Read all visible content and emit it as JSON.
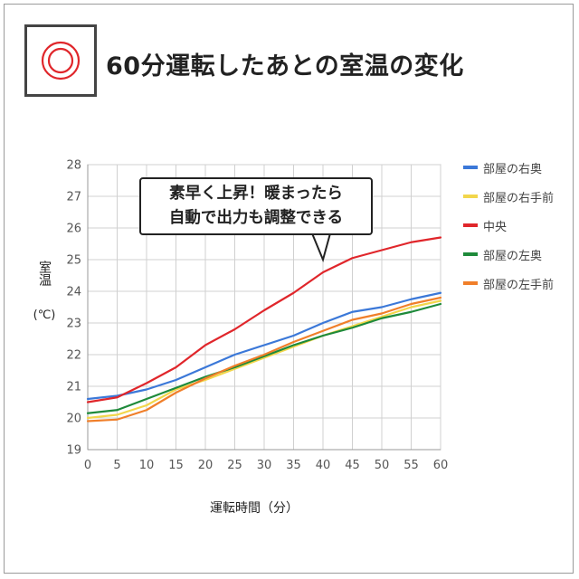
{
  "header": {
    "title": "60分運転したあとの室温の変化",
    "logo_icon": "concentric-circles-icon"
  },
  "callout": {
    "line1": "素早く上昇！暖まったら",
    "line2": "自動で出力も調整できる"
  },
  "chart_data": {
    "type": "line",
    "title": "60分運転したあとの室温の変化",
    "xlabel": "運転時間（分）",
    "ylabel": "室温",
    "yunit": "(℃)",
    "x": [
      0,
      5,
      10,
      15,
      20,
      25,
      30,
      35,
      40,
      45,
      50,
      55,
      60
    ],
    "xlim": [
      0,
      60
    ],
    "ylim": [
      19,
      28
    ],
    "xticks": [
      "0",
      "5",
      "10",
      "15",
      "20",
      "25",
      "30",
      "35",
      "40",
      "45",
      "50",
      "55",
      "60"
    ],
    "yticks": [
      "19",
      "20",
      "21",
      "22",
      "23",
      "24",
      "25",
      "26",
      "27",
      "28"
    ],
    "grid": true,
    "legend_position": "right",
    "series": [
      {
        "name": "部屋の右奥",
        "color": "#3b78d8",
        "values": [
          20.6,
          20.7,
          20.9,
          21.2,
          21.6,
          22.0,
          22.3,
          22.6,
          23.0,
          23.35,
          23.5,
          23.75,
          23.95
        ]
      },
      {
        "name": "部屋の右手前",
        "color": "#f2d64b",
        "values": [
          20.0,
          20.1,
          20.4,
          20.9,
          21.2,
          21.55,
          21.9,
          22.25,
          22.6,
          22.9,
          23.2,
          23.5,
          23.7
        ]
      },
      {
        "name": "中央",
        "color": "#e0262b",
        "values": [
          20.5,
          20.65,
          21.1,
          21.6,
          22.3,
          22.8,
          23.4,
          23.95,
          24.6,
          25.05,
          25.3,
          25.55,
          25.7
        ]
      },
      {
        "name": "部屋の左奥",
        "color": "#1e8a3a",
        "values": [
          20.15,
          20.25,
          20.6,
          20.95,
          21.3,
          21.6,
          21.95,
          22.3,
          22.6,
          22.85,
          23.15,
          23.35,
          23.6
        ]
      },
      {
        "name": "部屋の左手前",
        "color": "#f07f2a",
        "values": [
          19.9,
          19.95,
          20.25,
          20.8,
          21.25,
          21.65,
          22.0,
          22.4,
          22.75,
          23.1,
          23.3,
          23.6,
          23.8
        ]
      }
    ]
  }
}
